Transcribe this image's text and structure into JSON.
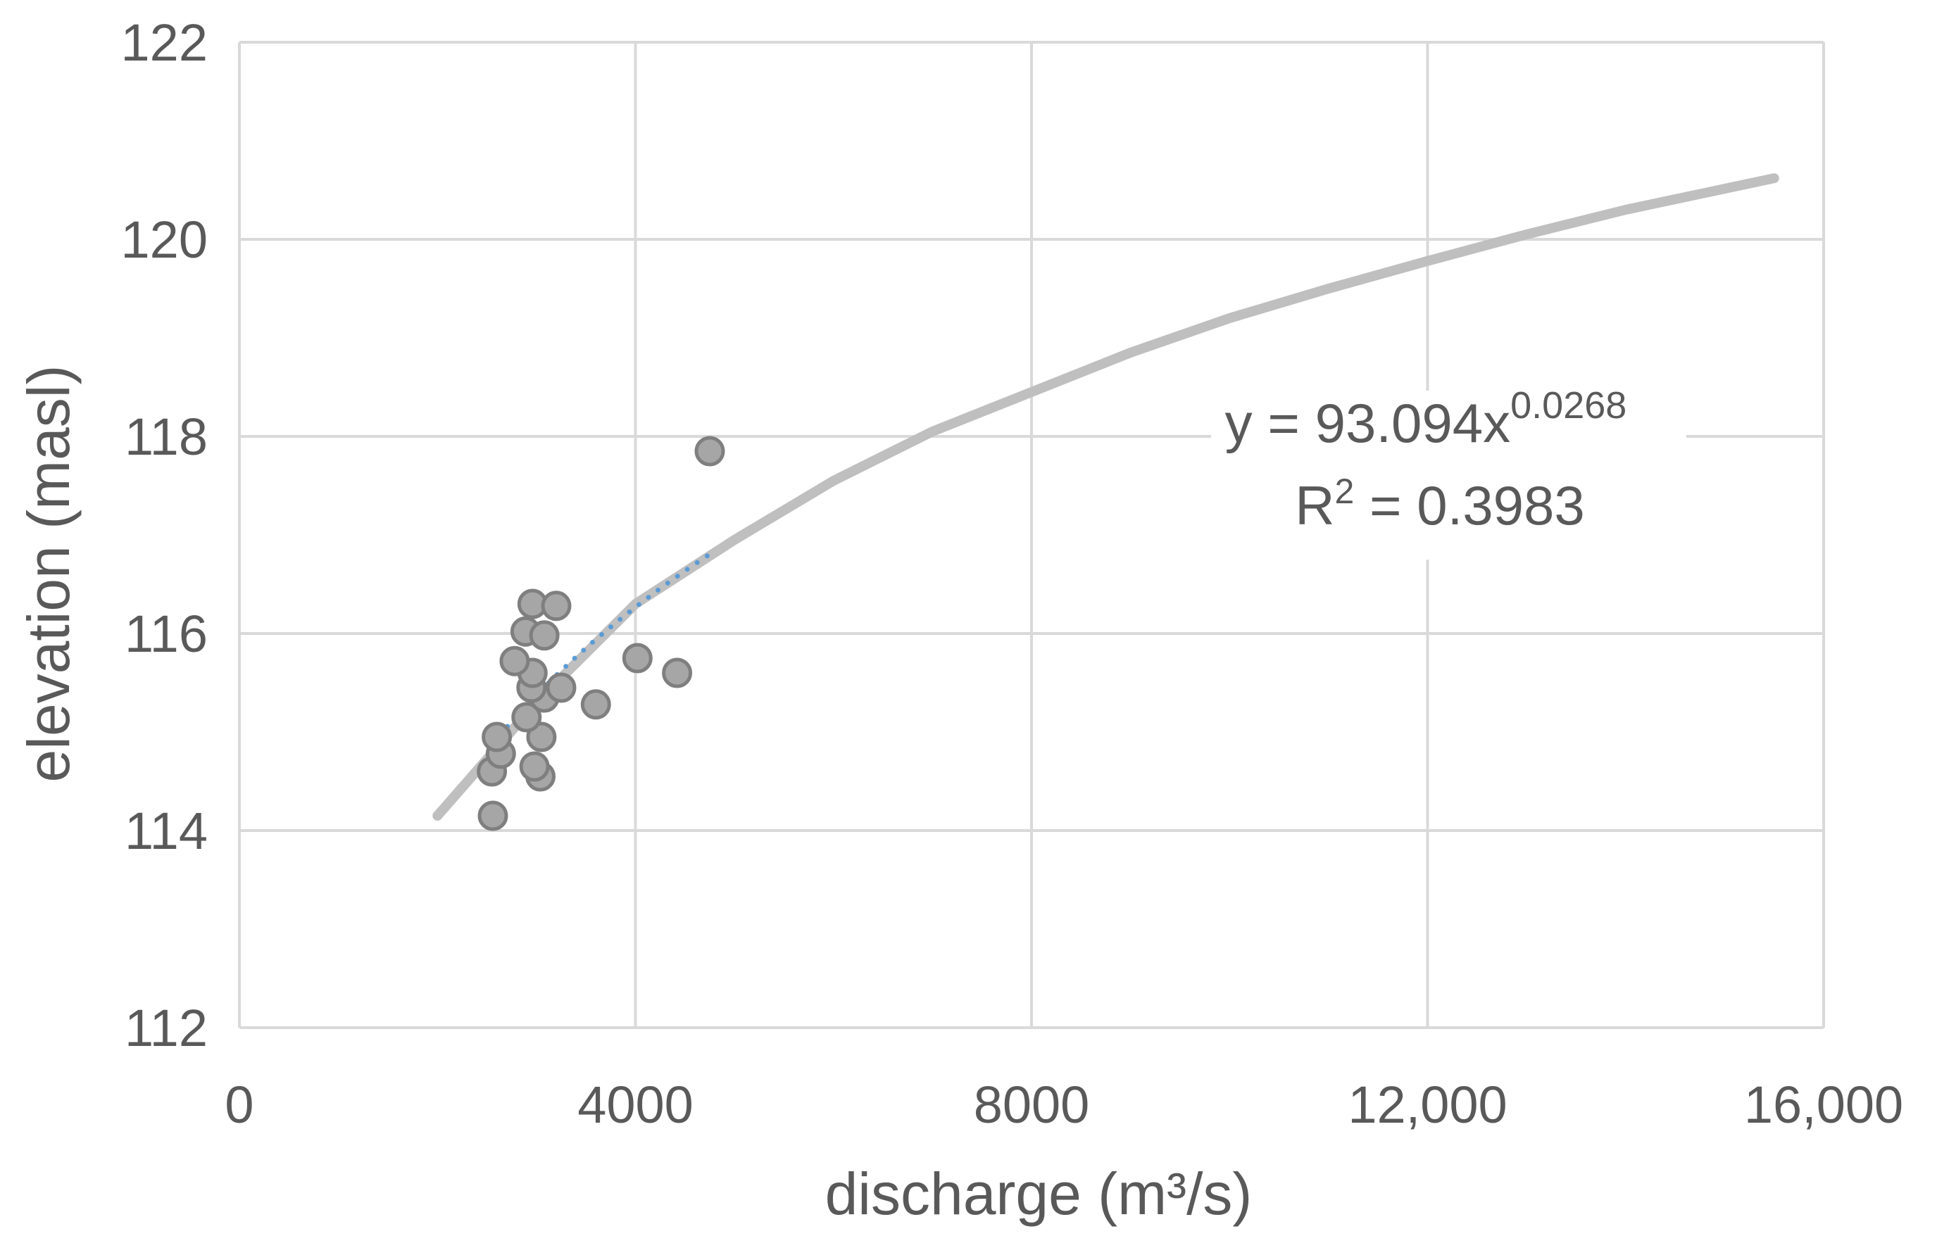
{
  "chart_data": {
    "type": "scatter",
    "title": "",
    "xlabel": "discharge (m³/s)",
    "ylabel": "elevation (masl)",
    "xlim": [
      0,
      16000
    ],
    "ylim": [
      112,
      122
    ],
    "x_ticks": [
      0,
      4000,
      8000,
      12000,
      16000
    ],
    "x_tick_labels": [
      "0",
      "4000",
      "8000",
      "12,000",
      "16,000"
    ],
    "y_ticks": [
      112,
      114,
      116,
      118,
      120,
      122
    ],
    "y_tick_labels": [
      "112",
      "114",
      "116",
      "118",
      "120",
      "122"
    ],
    "grid": true,
    "legend": "none",
    "colors": {
      "marker_fill": "#a6a6a6",
      "marker_edge": "#7f7f7f",
      "curve": "#bfbfbf",
      "trendline": "#5b9bd5",
      "grid": "#d9d9d9",
      "text": "#595959"
    },
    "points": [
      {
        "x": 2560,
        "y": 114.15
      },
      {
        "x": 2550,
        "y": 114.6
      },
      {
        "x": 2640,
        "y": 114.78
      },
      {
        "x": 2600,
        "y": 114.95
      },
      {
        "x": 3040,
        "y": 114.55
      },
      {
        "x": 2980,
        "y": 114.65
      },
      {
        "x": 3050,
        "y": 114.95
      },
      {
        "x": 2900,
        "y": 115.15
      },
      {
        "x": 3080,
        "y": 115.35
      },
      {
        "x": 2950,
        "y": 115.45
      },
      {
        "x": 3250,
        "y": 115.45
      },
      {
        "x": 2960,
        "y": 115.6
      },
      {
        "x": 2780,
        "y": 115.72
      },
      {
        "x": 2890,
        "y": 116.02
      },
      {
        "x": 3080,
        "y": 115.98
      },
      {
        "x": 2960,
        "y": 116.3
      },
      {
        "x": 3200,
        "y": 116.28
      },
      {
        "x": 3600,
        "y": 115.28
      },
      {
        "x": 4020,
        "y": 115.75
      },
      {
        "x": 4420,
        "y": 115.6
      },
      {
        "x": 4750,
        "y": 117.85
      }
    ],
    "power_curve": {
      "name": "",
      "x": [
        2000,
        3000,
        4000,
        5000,
        6000,
        7000,
        8000,
        9000,
        10000,
        11000,
        12000,
        13000,
        14000,
        15500
      ],
      "y": [
        114.15,
        115.3,
        116.3,
        116.95,
        117.55,
        118.05,
        118.45,
        118.85,
        119.2,
        119.5,
        119.78,
        120.05,
        120.3,
        120.62
      ]
    },
    "trendline": {
      "type": "power",
      "style": "dotted",
      "x_range": [
        2550,
        4750
      ],
      "coefficient": 93.094,
      "exponent": 0.0268,
      "equation_prefix": "y = 93.094x",
      "equation_exponent": "0.0268",
      "r2_prefix": "R",
      "r2_superscript": "2",
      "r2_value": " = 0.3983"
    }
  }
}
